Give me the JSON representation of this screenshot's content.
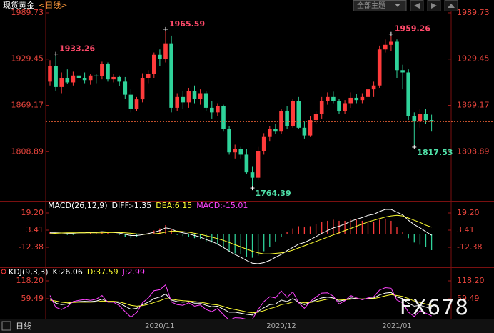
{
  "header": {
    "theme": "全部主题"
  },
  "footer": {
    "period": "日线"
  },
  "watermark": "FX678",
  "chart_data": [
    {
      "type": "candlestick",
      "title": "现货黄金",
      "subtitle": "<日线>",
      "up_color": "#ff3b3b",
      "down_color": "#2fd39a",
      "categories": [
        null,
        null,
        null,
        null,
        null,
        null,
        null,
        null,
        null,
        null,
        null,
        null,
        null,
        null,
        null,
        null,
        null,
        null,
        null,
        "2020/11",
        null,
        null,
        null,
        null,
        null,
        null,
        null,
        null,
        null,
        null,
        null,
        null,
        null,
        null,
        null,
        null,
        null,
        null,
        null,
        null,
        "2020/12",
        null,
        null,
        null,
        null,
        null,
        null,
        null,
        null,
        null,
        null,
        null,
        null,
        null,
        null,
        null,
        null,
        null,
        null,
        null,
        "2021/01",
        null,
        null,
        null,
        null,
        null,
        null
      ],
      "open": [
        1900,
        1920,
        1893,
        1905,
        1899,
        1908,
        1905,
        1902,
        1908,
        1907,
        1923,
        1903,
        1906,
        1900,
        1883,
        1865,
        1877,
        1905,
        1910,
        1935,
        1930,
        1950,
        1866,
        1880,
        1873,
        1888,
        1878,
        1885,
        1866,
        1860,
        1868,
        1838,
        1808,
        1812,
        1805,
        1782,
        1775,
        1810,
        1828,
        1838,
        1835,
        1862,
        1842,
        1875,
        1840,
        1830,
        1850,
        1858,
        1875,
        1880,
        1875,
        1862,
        1872,
        1879,
        1876,
        1880,
        1890,
        1895,
        1942,
        1948,
        1952,
        1915,
        1912,
        1855,
        1848,
        1858,
        1850
      ],
      "high": [
        1928,
        1933.26,
        1912,
        1916,
        1913,
        1914,
        1912,
        1910,
        1910,
        1926,
        1925,
        1910,
        1908,
        1906,
        1890,
        1880,
        1911,
        1915,
        1938,
        1942,
        1965.59,
        1960,
        1885,
        1888,
        1892,
        1895,
        1890,
        1888,
        1875,
        1872,
        1870,
        1842,
        1818,
        1815,
        1812,
        1790,
        1815,
        1833,
        1842,
        1845,
        1865,
        1868,
        1878,
        1880,
        1848,
        1855,
        1862,
        1880,
        1886,
        1887,
        1878,
        1876,
        1886,
        1884,
        1885,
        1896,
        1900,
        1947,
        1955,
        1959.26,
        1955,
        1922,
        1916,
        1860,
        1865,
        1864,
        1857
      ],
      "low": [
        1895,
        1888,
        1885,
        1897,
        1895,
        1902,
        1898,
        1896,
        1898,
        1903,
        1900,
        1899,
        1894,
        1878,
        1860,
        1862,
        1873,
        1898,
        1905,
        1920,
        1925,
        1860,
        1862,
        1865,
        1866,
        1872,
        1870,
        1862,
        1852,
        1855,
        1835,
        1805,
        1800,
        1800,
        1780,
        1764.39,
        1772,
        1805,
        1822,
        1832,
        1832,
        1838,
        1840,
        1838,
        1826,
        1828,
        1845,
        1852,
        1870,
        1872,
        1858,
        1858,
        1866,
        1872,
        1872,
        1877,
        1880,
        1892,
        1938,
        1940,
        1905,
        1890,
        1850,
        1817.53,
        1840,
        1845,
        1835
      ],
      "close": [
        1920,
        1893,
        1905,
        1899,
        1908,
        1905,
        1902,
        1908,
        1907,
        1923,
        1903,
        1906,
        1900,
        1883,
        1865,
        1877,
        1905,
        1910,
        1935,
        1930,
        1950,
        1866,
        1880,
        1873,
        1888,
        1878,
        1885,
        1866,
        1860,
        1868,
        1838,
        1808,
        1812,
        1805,
        1782,
        1775,
        1810,
        1828,
        1838,
        1835,
        1862,
        1842,
        1875,
        1840,
        1830,
        1850,
        1858,
        1875,
        1880,
        1875,
        1862,
        1872,
        1879,
        1876,
        1880,
        1890,
        1895,
        1942,
        1948,
        1952,
        1915,
        1912,
        1855,
        1848,
        1858,
        1850,
        1848
      ],
      "high_labels": [
        null,
        "1933.26",
        null,
        null,
        null,
        null,
        null,
        null,
        null,
        null,
        null,
        null,
        null,
        null,
        null,
        null,
        null,
        null,
        null,
        null,
        "1965.59",
        null,
        null,
        null,
        null,
        null,
        null,
        null,
        null,
        null,
        null,
        null,
        null,
        null,
        null,
        null,
        null,
        null,
        null,
        null,
        null,
        null,
        null,
        null,
        null,
        null,
        null,
        null,
        null,
        null,
        null,
        null,
        null,
        null,
        null,
        null,
        null,
        null,
        null,
        "1959.26",
        null,
        null,
        null,
        null,
        null,
        null,
        null
      ],
      "low_labels": [
        null,
        null,
        null,
        null,
        null,
        null,
        null,
        null,
        null,
        null,
        null,
        null,
        null,
        null,
        null,
        null,
        null,
        null,
        null,
        null,
        null,
        null,
        null,
        null,
        null,
        null,
        null,
        null,
        null,
        null,
        null,
        null,
        null,
        null,
        null,
        "1764.39",
        null,
        null,
        null,
        null,
        null,
        null,
        null,
        null,
        null,
        null,
        null,
        null,
        null,
        null,
        null,
        null,
        null,
        null,
        null,
        null,
        null,
        null,
        null,
        null,
        null,
        null,
        null,
        "1817.53",
        null,
        null,
        null
      ],
      "ylim": [
        1747.7,
        1997.15
      ],
      "yticks": [
        1989.73,
        1929.45,
        1869.17,
        1808.89
      ]
    },
    {
      "type": "macd",
      "title": "MACD(26,12,9)",
      "up_color": "#ff3b3b",
      "down_color": "#2fd39a",
      "series": [
        {
          "name": "DIFF:-1.35",
          "color": "#ffffff",
          "values": [
            1,
            1,
            0.8,
            0.5,
            0.5,
            1,
            1,
            1.5,
            1.5,
            2,
            1.7,
            1.3,
            0.8,
            -0.5,
            -1.5,
            -1.5,
            -0.8,
            0.2,
            1.5,
            3,
            5.5,
            4.5,
            2,
            1,
            0,
            -1.5,
            -3,
            -5.3,
            -7,
            -9.5,
            -12.5,
            -16,
            -19,
            -21.5,
            -24.5,
            -27,
            -27.5,
            -26.5,
            -24.5,
            -21.5,
            -19,
            -15.5,
            -12.5,
            -9.5,
            -8,
            -5.5,
            -2.5,
            0.5,
            3,
            5.5,
            7,
            9,
            11.5,
            13.5,
            15,
            17,
            18,
            20.5,
            22.5,
            22.5,
            20,
            17.5,
            12.5,
            8.5,
            5.5,
            2,
            -1.35
          ]
        },
        {
          "name": "DEA:6.15",
          "color": "#ffff33",
          "values": [
            0,
            0.5,
            0.8,
            1,
            1,
            1,
            1,
            1,
            1,
            1,
            1.2,
            1.3,
            1.3,
            1,
            0.5,
            0,
            -0.3,
            -0.3,
            0,
            0.5,
            1.5,
            2.5,
            2.5,
            2,
            1.5,
            0.5,
            -0.5,
            -1.8,
            -3,
            -4.5,
            -6,
            -8,
            -10,
            -12,
            -14,
            -16,
            -17.5,
            -18.5,
            -18.5,
            -18,
            -17.5,
            -16.5,
            -15,
            -13,
            -11,
            -9,
            -7,
            -5,
            -3,
            -1,
            1,
            3,
            5,
            7,
            9,
            11,
            12.5,
            14,
            15.5,
            16.5,
            17,
            16.5,
            14.5,
            12.5,
            10.5,
            8,
            6.15
          ]
        },
        {
          "name": "MACD:-15.01",
          "color": "#ff44ff",
          "style": "bar",
          "values": [
            2,
            1,
            0,
            -1,
            -1,
            0,
            0,
            1,
            1,
            2,
            1,
            0,
            -1,
            -3,
            -4,
            -3,
            -1,
            1,
            3,
            5,
            8,
            4,
            -1,
            -2,
            -3,
            -4,
            -5,
            -7,
            -8,
            -10,
            -13,
            -16,
            -18,
            -19,
            -21,
            -22,
            -20,
            -16,
            -12,
            -7,
            -3,
            2,
            5,
            7,
            6,
            7,
            9,
            11,
            12,
            13,
            12,
            12,
            13,
            13,
            12,
            12,
            11,
            13,
            14,
            12,
            6,
            2,
            -4,
            -8,
            -10,
            -12,
            -15.01
          ]
        }
      ],
      "ylim": [
        -28.17,
        27.75
      ],
      "yticks": [
        {
          "value": 19.2,
          "label": "19.20"
        },
        3.41,
        -12.38
      ]
    },
    {
      "type": "kdj",
      "title": "KDJ(9,3,3)",
      "series": [
        {
          "name": "K:26.06",
          "color": "#ffffff",
          "values": [
            60,
            45,
            40,
            42,
            48,
            50,
            51,
            50,
            52,
            58,
            50,
            50,
            45,
            35,
            25,
            28,
            40,
            48,
            60,
            65,
            75,
            55,
            50,
            48,
            50,
            45,
            45,
            38,
            33,
            35,
            25,
            15,
            15,
            12,
            8,
            6,
            18,
            30,
            40,
            42,
            55,
            50,
            60,
            48,
            40,
            48,
            55,
            62,
            65,
            62,
            52,
            55,
            62,
            60,
            58,
            60,
            62,
            72,
            78,
            80,
            65,
            60,
            45,
            35,
            38,
            32,
            26.06
          ]
        },
        {
          "name": "D:37.59",
          "color": "#ffff33",
          "values": [
            55,
            52,
            48,
            46,
            47,
            48,
            48,
            48,
            49,
            52,
            51,
            51,
            49,
            44,
            38,
            35,
            37,
            41,
            47,
            53,
            60,
            58,
            55,
            53,
            52,
            50,
            48,
            45,
            41,
            39,
            34,
            28,
            24,
            20,
            16,
            13,
            15,
            20,
            27,
            32,
            40,
            43,
            49,
            49,
            46,
            47,
            50,
            54,
            58,
            59,
            57,
            56,
            58,
            59,
            59,
            59,
            60,
            64,
            69,
            73,
            70,
            67,
            60,
            52,
            47,
            42,
            37.59
          ]
        },
        {
          "name": "J:2.99",
          "color": "#ff44ff",
          "values": [
            70,
            31,
            24,
            34,
            50,
            54,
            57,
            54,
            58,
            70,
            48,
            48,
            37,
            17,
            -1,
            14,
            46,
            62,
            86,
            89,
            105,
            49,
            40,
            38,
            46,
            35,
            39,
            24,
            17,
            27,
            7,
            -11,
            -3,
            -4,
            -8,
            -8,
            24,
            50,
            66,
            62,
            85,
            64,
            82,
            46,
            28,
            50,
            65,
            78,
            79,
            68,
            42,
            53,
            70,
            62,
            56,
            62,
            66,
            88,
            96,
            94,
            55,
            46,
            15,
            1,
            20,
            12,
            2.99
          ]
        }
      ],
      "ylim": [
        -43.84,
        148.73
      ],
      "yticks": [
        {
          "value": 118.2,
          "label": "118.20"
        },
        59.49
      ]
    }
  ]
}
